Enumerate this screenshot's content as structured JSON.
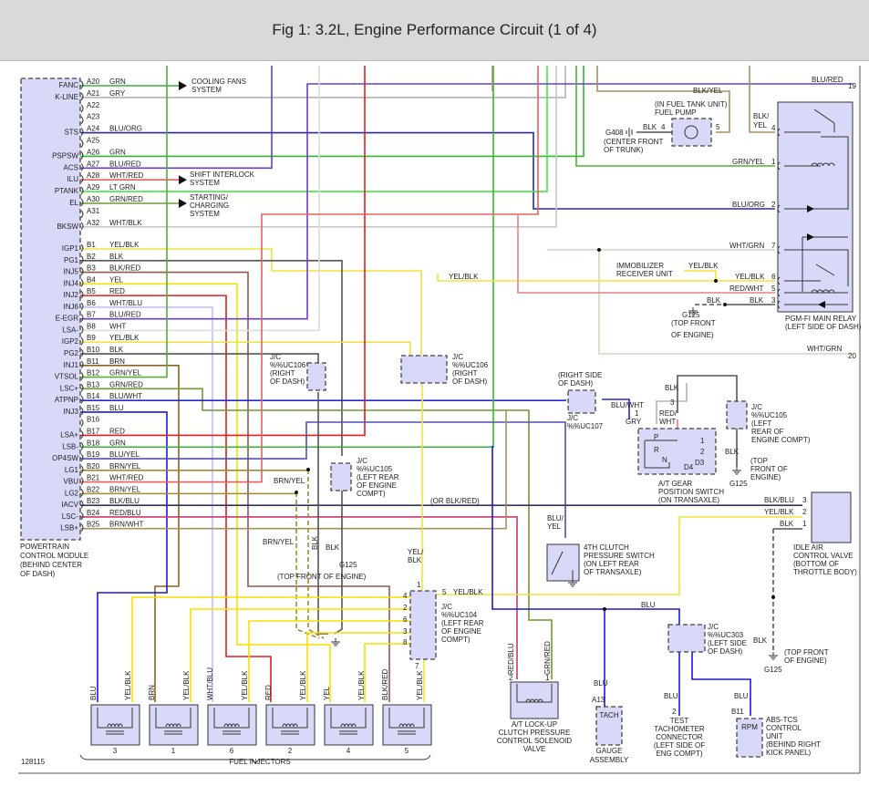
{
  "title": "Fig 1: 3.2L, Engine Performance Circuit (1 of 4)",
  "figure_number": "128115",
  "wire_colors": {
    "GRN": "#33b533",
    "GRY": "#b4b4b4",
    "BLU/ORG": "#2a2a9a",
    "BLU/RED": "#6a3ec8",
    "WHT/RED": "#e86060",
    "LT GRN": "#44e844",
    "GRN/RED": "#6e9a30",
    "WHT/BLK": "#c8c8c8",
    "YEL/BLK": "#efe23c",
    "BLK": "#555555",
    "BLK/RED": "#8a5a50",
    "YEL": "#f5e000",
    "RED": "#e02020",
    "WHT/BLU": "#c0c0ec",
    "WHT": "#dddddd",
    "BRN": "#8a6420",
    "GRN/YEL": "#50b030",
    "BLU/WHT": "#2828d0",
    "BLU": "#1a1ad8",
    "BLU/YEL": "#5050b0",
    "BRN/YEL": "#a08a30",
    "BLK/BLU": "#303070",
    "RED/BLU": "#c83870",
    "BRN/WHT": "#a89060",
    "BLK/YEL": "#a89060",
    "WHT/GRN": "#c6dcc0",
    "RED/WHT": "#e88080"
  },
  "pcm": {
    "label": [
      "POWERTRAIN",
      "CONTROL MODULE",
      "(BEHIND CENTER",
      "OF DASH)"
    ],
    "pins": [
      {
        "pin": "A20",
        "func": "FANC",
        "wire": "GRN"
      },
      {
        "pin": "A21",
        "func": "K-LINE",
        "wire": "GRY"
      },
      {
        "pin": "A22",
        "func": "",
        "wire": ""
      },
      {
        "pin": "A23",
        "func": "",
        "wire": ""
      },
      {
        "pin": "A24",
        "func": "STS",
        "wire": "BLU/ORG"
      },
      {
        "pin": "A25",
        "func": "",
        "wire": ""
      },
      {
        "pin": "A26",
        "func": "PSPSW",
        "wire": "GRN"
      },
      {
        "pin": "A27",
        "func": "ACS",
        "wire": "BLU/RED"
      },
      {
        "pin": "A28",
        "func": "ILU",
        "wire": "WHT/RED"
      },
      {
        "pin": "A29",
        "func": "PTANK",
        "wire": "LT GRN"
      },
      {
        "pin": "A30",
        "func": "EL",
        "wire": "GRN/RED"
      },
      {
        "pin": "A31",
        "func": "",
        "wire": ""
      },
      {
        "pin": "A32",
        "func": "BKSW",
        "wire": "WHT/BLK"
      },
      {
        "pin": "B1",
        "func": "IGP1",
        "wire": "YEL/BLK"
      },
      {
        "pin": "B2",
        "func": "PG1",
        "wire": "BLK"
      },
      {
        "pin": "B3",
        "func": "INJ5",
        "wire": "BLK/RED"
      },
      {
        "pin": "B4",
        "func": "INJ4",
        "wire": "YEL"
      },
      {
        "pin": "B5",
        "func": "INJ2",
        "wire": "RED"
      },
      {
        "pin": "B6",
        "func": "INJ6",
        "wire": "WHT/BLU"
      },
      {
        "pin": "B7",
        "func": "E-EGR",
        "wire": "BLU/RED"
      },
      {
        "pin": "B8",
        "func": "LSA-",
        "wire": "WHT"
      },
      {
        "pin": "B9",
        "func": "IGP2",
        "wire": "YEL/BLK"
      },
      {
        "pin": "B10",
        "func": "PG2",
        "wire": "BLK"
      },
      {
        "pin": "B11",
        "func": "INJ1",
        "wire": "BRN"
      },
      {
        "pin": "B12",
        "func": "VTSOL",
        "wire": "GRN/YEL"
      },
      {
        "pin": "B13",
        "func": "LSC+",
        "wire": "GRN/RED"
      },
      {
        "pin": "B14",
        "func": "ATPNP",
        "wire": "BLU/WHT"
      },
      {
        "pin": "B15",
        "func": "INJ3",
        "wire": "BLU"
      },
      {
        "pin": "B16",
        "func": "",
        "wire": ""
      },
      {
        "pin": "B17",
        "func": "LSA+",
        "wire": "RED"
      },
      {
        "pin": "B18",
        "func": "LSB-",
        "wire": "GRN"
      },
      {
        "pin": "B19",
        "func": "OP4SW",
        "wire": "BLU/YEL"
      },
      {
        "pin": "B20",
        "func": "LG1",
        "wire": "BRN/YEL"
      },
      {
        "pin": "B21",
        "func": "VBU",
        "wire": "WHT/RED"
      },
      {
        "pin": "B22",
        "func": "LG2",
        "wire": "BRN/YEL"
      },
      {
        "pin": "B23",
        "func": "IACV",
        "wire": "BLK/BLU"
      },
      {
        "pin": "B24",
        "func": "LSC-",
        "wire": "RED/BLU"
      },
      {
        "pin": "B25",
        "func": "LSB+",
        "wire": "BRN/WHT"
      }
    ]
  },
  "labels": {
    "cooling_fans": [
      "COOLING FANS",
      "SYSTEM"
    ],
    "shift_interlock": [
      "SHIFT INTERLOCK",
      "SYSTEM"
    ],
    "starting_charging": [
      "STARTING/",
      "CHARGING",
      "SYSTEM"
    ],
    "blu_red_19": "BLU/RED",
    "conn_19": "19",
    "blk_yel_top": "BLK/YEL",
    "fuel_pump": [
      "(IN FUEL TANK UNIT)",
      "FUEL PUMP"
    ],
    "g408": "G408",
    "g408_loc": [
      "(CENTER FRONT",
      "OF TRUNK)"
    ],
    "fp_blk": "BLK",
    "fp_pin4": "4",
    "fp_pin5": "5",
    "motor": "M",
    "relay_blk_yel": [
      "BLK/",
      "YEL"
    ],
    "relay_grn_yel": "GRN/YEL",
    "relay_blu_org": "BLU/ORG",
    "relay_wht_grn": "WHT/GRN",
    "relay_yel_blk": "YEL/BLK",
    "relay_red_wht": "RED/WHT",
    "relay_blk": "BLK",
    "relay_pins": [
      "4",
      "1",
      "2",
      "7",
      "6",
      "5",
      "3"
    ],
    "relay_name": [
      "PGM-FI MAIN RELAY",
      "(LEFT SIDE OF DASH)"
    ],
    "immobilizer": [
      "IMMOBILIZER",
      "RECEIVER UNIT"
    ],
    "immob_yel_blk": "YEL/BLK",
    "g125_relay_blk": "BLK",
    "g125_relay": "G125",
    "g125_relay_loc": [
      "(TOP FRONT",
      "OF ENGINE)"
    ],
    "wht_grn_20": "WHT/GRN",
    "conn_20": "20",
    "yel_blk_mid": "YEL/BLK",
    "jc106_left": [
      "J/C",
      "%%UC106",
      "(RIGHT",
      "OF DASH)"
    ],
    "jc106_right": [
      "J/C",
      "%%UC106",
      "(RIGHT",
      "OF DASH)"
    ],
    "jc105_mid": [
      "J/C",
      "%%UC105",
      "(LEFT REAR",
      "OF ENGINE",
      "COMPT)"
    ],
    "jc107_loc": [
      "(RIGHT SIDE",
      "OF DASH)"
    ],
    "jc107": [
      "J/C",
      "%%UC107"
    ],
    "blu_wht": "BLU/WHT",
    "gry": "GRY",
    "gear_pin1": "1",
    "gear_pin3": "3",
    "red_wht": [
      "RED/",
      "WHT"
    ],
    "gear_blk": "BLK",
    "gear_positions": [
      "P",
      "R",
      "N",
      "D4",
      "D3",
      "2",
      "1"
    ],
    "gear_switch": [
      "A/T GEAR",
      "POSITION SWITCH",
      "(ON TRANSAXLE)"
    ],
    "jc105_right": [
      "J/C",
      "%%UC105",
      "(LEFT",
      "REAR OF",
      "ENGINE COMPT)"
    ],
    "jc105r_blk": "BLK",
    "g125_gear": "G125",
    "g125_gear_loc": [
      "(TOP",
      "FRONT OF",
      "ENGINE)"
    ],
    "or_blk_red": "(OR BLK/RED)",
    "brn_yel_1": "BRN/YEL",
    "brn_yel_2": "BRN/YEL",
    "g125_blk_v": "BLK",
    "g125_blk": "BLK",
    "g125_main": "G125",
    "g125_main_loc": "(TOP FRONT OF ENGINE)",
    "blu_yel_v": [
      "BLU/",
      "YEL"
    ],
    "clutch_switch": [
      "4TH CLUTCH",
      "PRESSURE SWITCH",
      "(ON LEFT REAR",
      "OF TRANSAXLE)"
    ],
    "iacv_blk_blu": "BLK/BLU",
    "iacv_yel_blk": "YEL/BLK",
    "iacv_blk": "BLK",
    "iacv_pins": [
      "3",
      "2",
      "1"
    ],
    "iacv": [
      "IDLE AIR",
      "CONTROL VALVE",
      "(BOTTOM OF",
      "THROTTLE BODY)"
    ],
    "yel_blk_jc104": [
      "YEL/",
      "BLK"
    ],
    "jc104": [
      "J/C",
      "%%UC104",
      "(LEFT REAR",
      "OF ENGINE",
      "COMPT)"
    ],
    "jc104_pins": [
      "1",
      "4",
      "2",
      "6",
      "3",
      "8",
      "7",
      "5"
    ],
    "jc104_yel_blk": "YEL/BLK",
    "blu_tach": "BLU",
    "jc303": [
      "J/C",
      "%%UC303",
      "(LEFT SIDE",
      "OF DASH)"
    ],
    "g125_iacv_blk": "BLK",
    "g125_iacv": "G125",
    "g125_iacv_loc": [
      "(TOP FRONT",
      "OF ENGINE)"
    ],
    "solenoid_wires": [
      "RED/BLU",
      "GRN/RED"
    ],
    "solenoid_pins": [
      "2",
      "1"
    ],
    "solenoid": [
      "A/T LOCK-UP",
      "CLUTCH PRESSURE",
      "CONTROL SOLENOID",
      "VALVE"
    ],
    "tach_blu": "BLU",
    "tach_pin": "A13",
    "tach": "TACH",
    "gauge": [
      "GAUGE",
      "ASSEMBLY"
    ],
    "test_blu": "BLU",
    "test_pin": "2",
    "test_conn": [
      "TEST",
      "TACHOMETER",
      "CONNECTOR",
      "(LEFT SIDE OF",
      "ENG COMPT)"
    ],
    "abs_blu": "BLU",
    "abs_pin": "B11",
    "rpm": "RPM",
    "abs": [
      "ABS-TCS",
      "CONTROL",
      "UNIT",
      "(BEHIND RIGHT",
      "KICK PANEL)"
    ],
    "fuel_injectors": "FUEL INJECTORS"
  },
  "injectors": [
    {
      "number": "3",
      "pin2_wire": "BLU",
      "pin1_wire": "YEL/BLK"
    },
    {
      "number": "1",
      "pin2_wire": "BRN",
      "pin1_wire": "YEL/BLK"
    },
    {
      "number": "6",
      "pin2_wire": "WHT/BLU",
      "pin1_wire": "YEL/BLK"
    },
    {
      "number": "2",
      "pin2_wire": "RED",
      "pin1_wire": "YEL/BLK"
    },
    {
      "number": "4",
      "pin2_wire": "YEL",
      "pin1_wire": "YEL/BLK"
    },
    {
      "number": "5",
      "pin2_wire": "BLK/RED",
      "pin1_wire": "YEL/BLK"
    }
  ]
}
